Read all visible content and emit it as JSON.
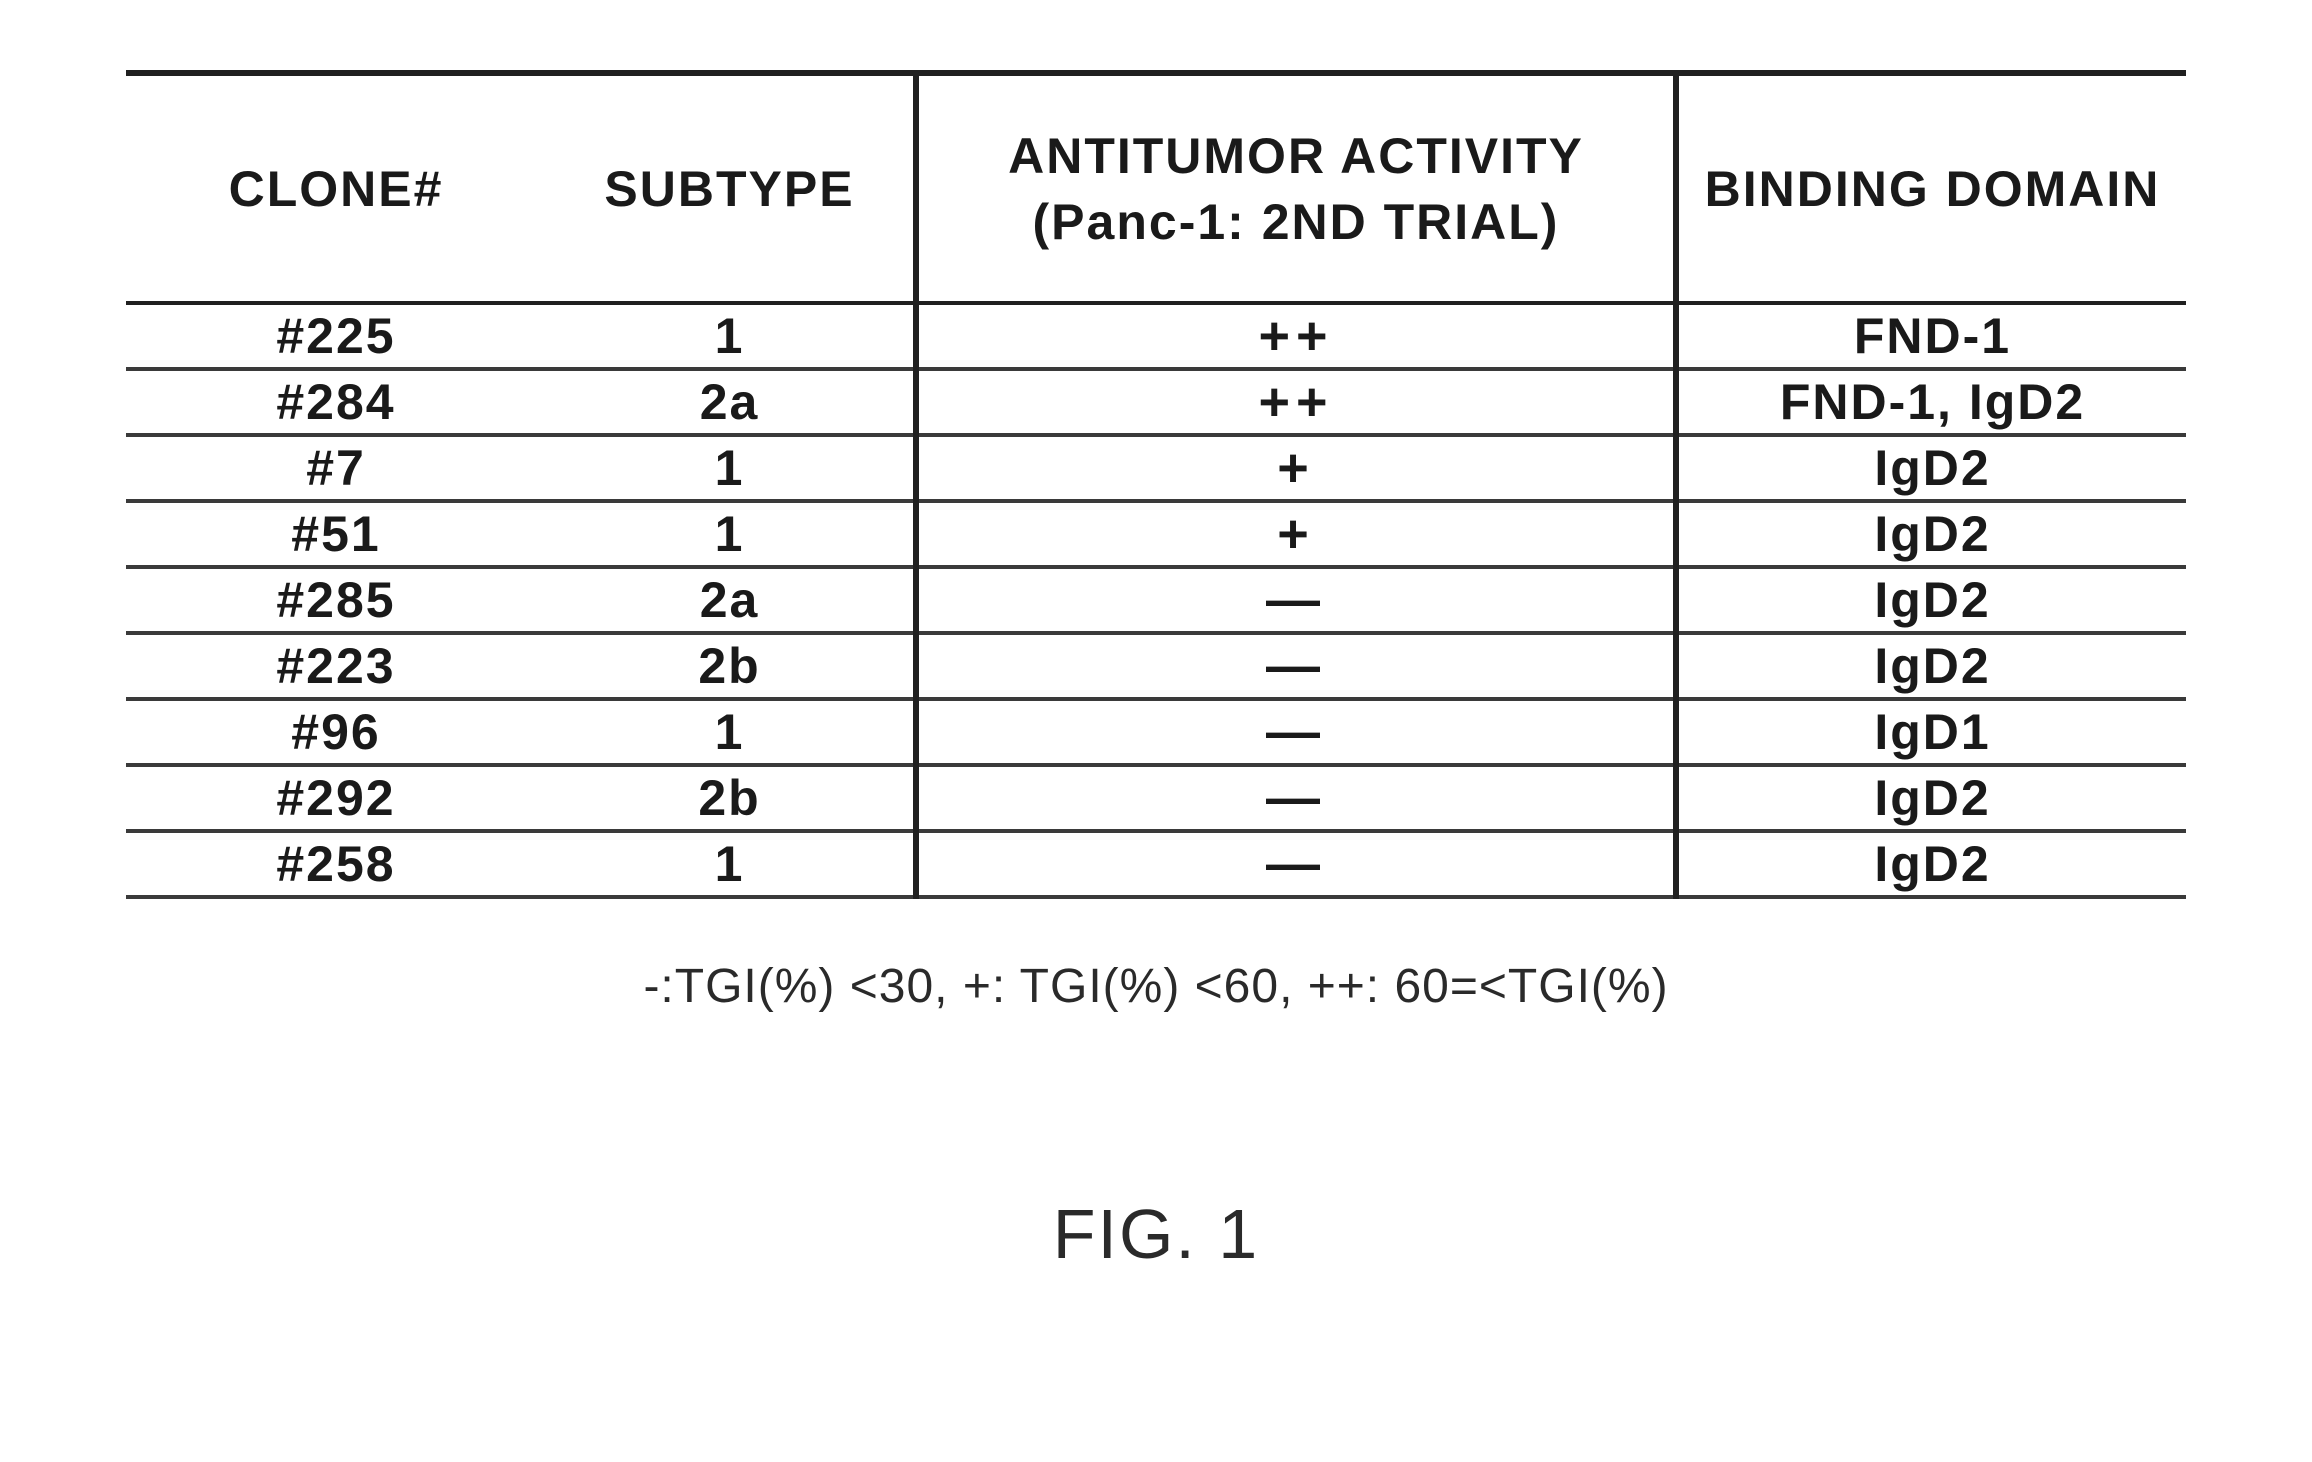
{
  "table": {
    "headers": {
      "clone": "CLONE#",
      "subtype": "SUBTYPE",
      "activity_line1": "ANTITUMOR ACTIVITY",
      "activity_line2": "(Panc-1: 2ND TRIAL)",
      "binding": "BINDING DOMAIN"
    },
    "rows": [
      {
        "clone": "#225",
        "subtype": "1",
        "activity": "++",
        "binding": "FND-1"
      },
      {
        "clone": "#284",
        "subtype": "2a",
        "activity": "++",
        "binding": "FND-1, IgD2"
      },
      {
        "clone": "#7",
        "subtype": "1",
        "activity": "+",
        "binding": "IgD2"
      },
      {
        "clone": "#51",
        "subtype": "1",
        "activity": "+",
        "binding": "IgD2"
      },
      {
        "clone": "#285",
        "subtype": "2a",
        "activity": "—",
        "binding": "IgD2"
      },
      {
        "clone": "#223",
        "subtype": "2b",
        "activity": "—",
        "binding": "IgD2"
      },
      {
        "clone": "#96",
        "subtype": "1",
        "activity": "—",
        "binding": "IgD1"
      },
      {
        "clone": "#292",
        "subtype": "2b",
        "activity": "—",
        "binding": "IgD2"
      },
      {
        "clone": "#258",
        "subtype": "1",
        "activity": "—",
        "binding": "IgD2"
      }
    ]
  },
  "legend": "-:TGI(%) <30, +: TGI(%) <60, ++: 60=<TGI(%)",
  "figure_label": "FIG. 1"
}
